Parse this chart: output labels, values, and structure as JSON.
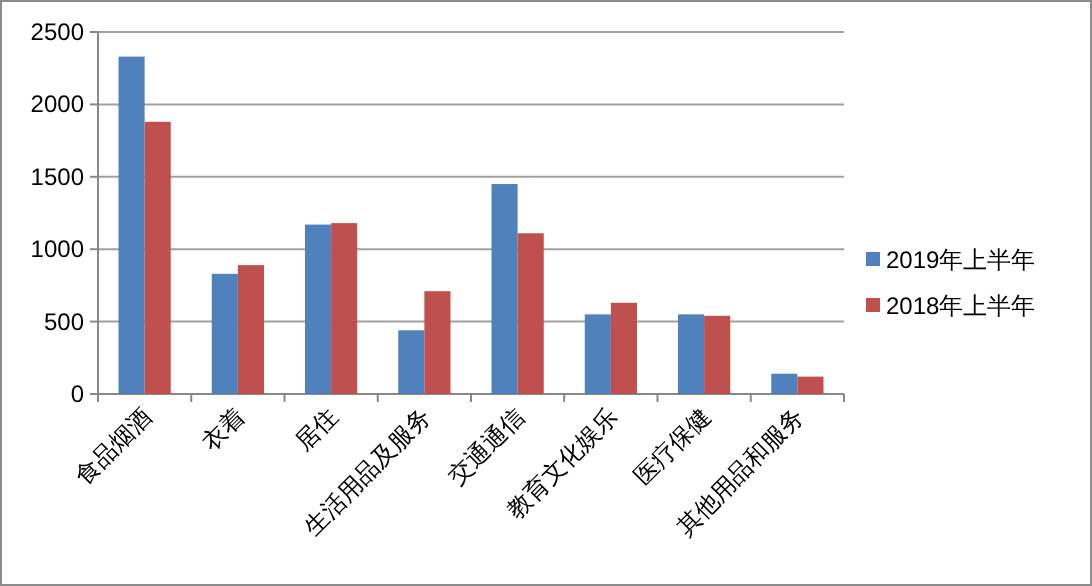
{
  "chart_data": {
    "type": "bar",
    "categories": [
      "食品烟酒",
      "衣着",
      "居住",
      "生活用品及服务",
      "交通通信",
      "教育文化娱乐",
      "医疗保健",
      "其他用品和服务"
    ],
    "series": [
      {
        "name": "2019年上半年",
        "color": "#4f81bd",
        "values": [
          2330,
          830,
          1170,
          440,
          1450,
          550,
          550,
          140
        ]
      },
      {
        "name": "2018年上半年",
        "color": "#c0504d",
        "values": [
          1880,
          890,
          1180,
          710,
          1110,
          630,
          540,
          120
        ]
      }
    ],
    "ylim": [
      0,
      2500
    ],
    "yticks": [
      0,
      500,
      1000,
      1500,
      2000,
      2500
    ],
    "grid": "y",
    "legend": "right"
  }
}
